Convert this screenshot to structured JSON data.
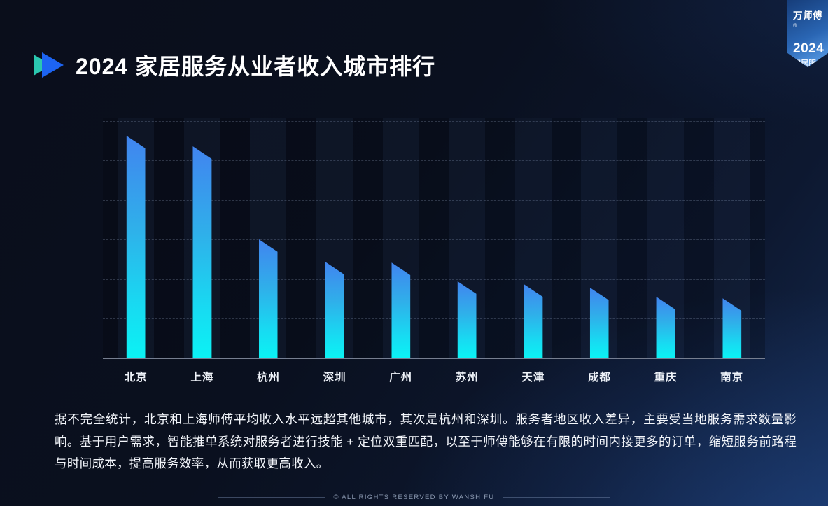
{
  "header": {
    "title": "2024 家居服务从业者收入城市排行"
  },
  "ribbon": {
    "brand": "万师傅",
    "reg_mark": "®",
    "year": "2024",
    "line1": "家居服务",
    "line2": "行业报告"
  },
  "chart_data": {
    "type": "bar",
    "title": "2024 家居服务从业者收入城市排行",
    "categories": [
      "北京",
      "上海",
      "杭州",
      "深圳",
      "广州",
      "苏州",
      "天津",
      "成都",
      "重庆",
      "南京"
    ],
    "values": [
      93.5,
      89.0,
      49.9,
      40.4,
      40.0,
      32.2,
      31.0,
      29.5,
      25.7,
      25.1
    ],
    "value_unit": "relative bar height, % of plot scale (no numeric axis labels shown)",
    "xlabel": "",
    "ylabel": "",
    "ylim": [
      0,
      100
    ],
    "grid": "horizontal dashed lines, 6 levels above solid baseline",
    "legend": "none",
    "bar_color_top": "#4184ef",
    "bar_color_bottom": "#0bf2f4",
    "bar_top_style": "slanted cut, high-left to low-right"
  },
  "description": {
    "text": "据不完全统计，北京和上海师傅平均收入水平远超其他城市，其次是杭州和深圳。服务者地区收入差异，主要受当地服务需求数量影响。基于用户需求，智能推单系统对服务者进行技能 + 定位双重匹配，以至于师傅能够在有限的时间内接更多的订单，缩短服务前路程与时间成本，提高服务效率，从而获取更高收入。"
  },
  "footer": {
    "copyright": "© ALL RIGHTS RESERVED BY WANSHIFU"
  },
  "colors": {
    "accent_teal": "#2bc7b0",
    "accent_blue": "#1d64f2",
    "ribbon_gradient_from": "#163d7a",
    "ribbon_gradient_to": "#60a5ee",
    "background_dark": "#0a0e1b",
    "background_light_corner": "#14294e"
  }
}
